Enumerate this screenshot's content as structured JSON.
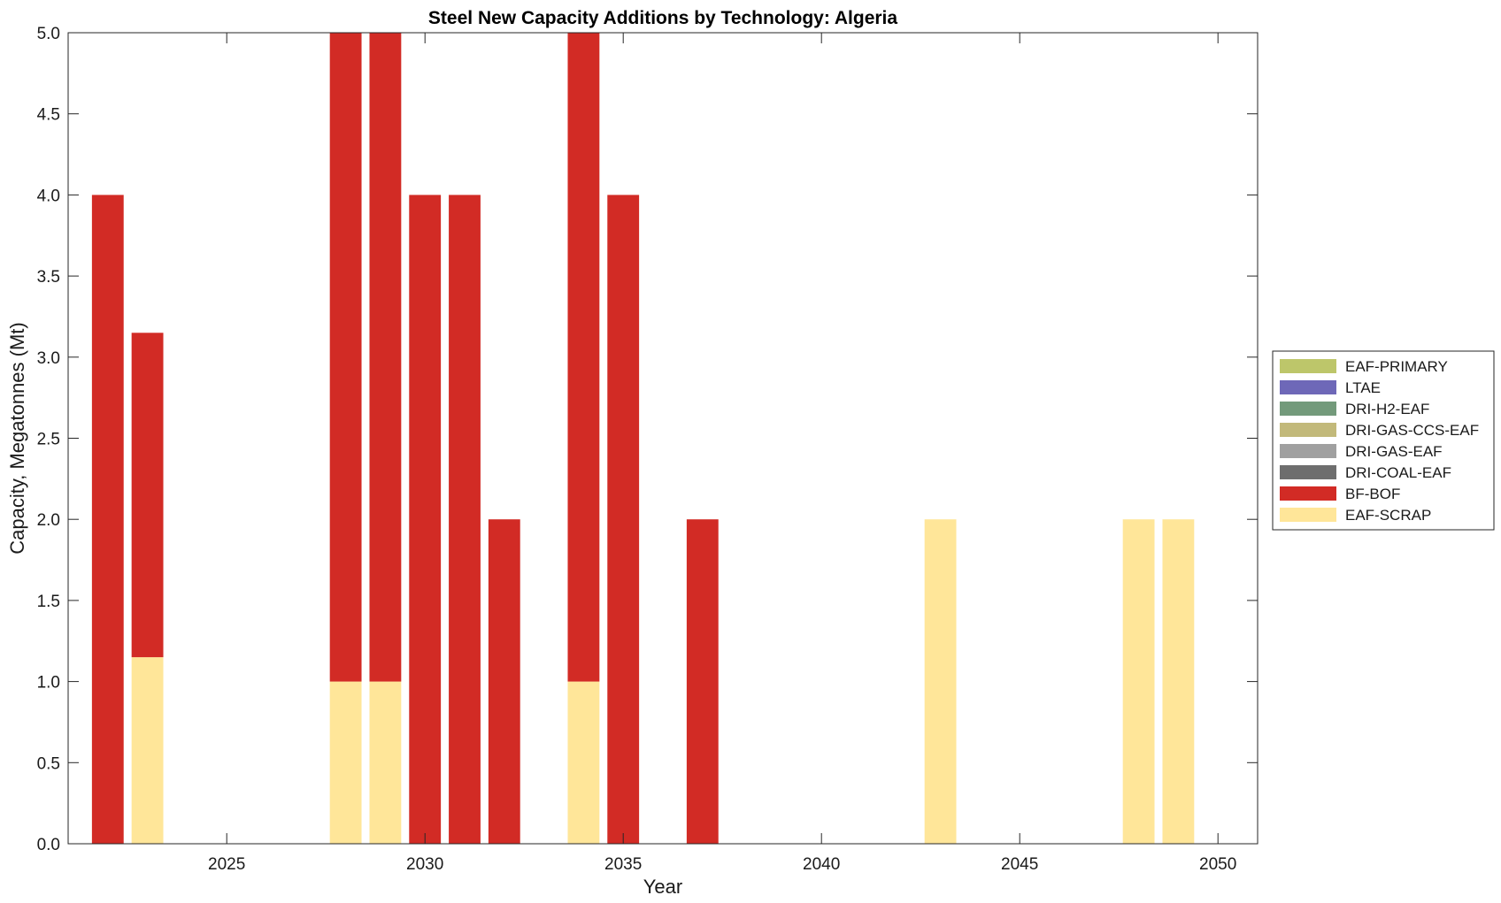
{
  "chart_data": {
    "type": "bar",
    "stacked": true,
    "title": "Steel New Capacity Additions by Technology: Algeria",
    "xlabel": "Year",
    "ylabel": "Capacity, Megatonnes (Mt)",
    "xlim": [
      2021,
      2051
    ],
    "ylim": [
      0,
      5
    ],
    "xticks": [
      2025,
      2030,
      2035,
      2040,
      2045,
      2050
    ],
    "yticks": [
      "0.0",
      "0.5",
      "1.0",
      "1.5",
      "2.0",
      "2.5",
      "3.0",
      "3.5",
      "4.0",
      "4.5",
      "5.0"
    ],
    "grid": false,
    "legend_position": "right",
    "x": [
      2022,
      2023,
      2024,
      2025,
      2026,
      2027,
      2028,
      2029,
      2030,
      2031,
      2032,
      2033,
      2034,
      2035,
      2036,
      2037,
      2038,
      2039,
      2040,
      2041,
      2042,
      2043,
      2044,
      2045,
      2046,
      2047,
      2048,
      2049,
      2050
    ],
    "series": [
      {
        "name": "EAF-SCRAP",
        "color": "#FFE699",
        "values": [
          0,
          1.15,
          0,
          0,
          0,
          0,
          1,
          1,
          0,
          0,
          0,
          0,
          1,
          0,
          0,
          0,
          0,
          0,
          0,
          0,
          0,
          2,
          0,
          0,
          0,
          0,
          2,
          2,
          0
        ]
      },
      {
        "name": "BF-BOF",
        "color": "#D22B25",
        "values": [
          4,
          2,
          0,
          0,
          0,
          0,
          4,
          4,
          4,
          4,
          2,
          0,
          4,
          4,
          0,
          2,
          0,
          0,
          0,
          0,
          0,
          0,
          0,
          0,
          0,
          0,
          0,
          0,
          0
        ]
      },
      {
        "name": "DRI-COAL-EAF",
        "color": "#6E6E6E",
        "values": [
          0,
          0,
          0,
          0,
          0,
          0,
          0,
          0,
          0,
          0,
          0,
          0,
          0,
          0,
          0,
          0,
          0,
          0,
          0,
          0,
          0,
          0,
          0,
          0,
          0,
          0,
          0,
          0,
          0
        ]
      },
      {
        "name": "DRI-GAS-EAF",
        "color": "#A0A0A0",
        "values": [
          0,
          0,
          0,
          0,
          0,
          0,
          0,
          0,
          0,
          0,
          0,
          0,
          0,
          0,
          0,
          0,
          0,
          0,
          0,
          0,
          0,
          0,
          0,
          0,
          0,
          0,
          0,
          0,
          0
        ]
      },
      {
        "name": "DRI-GAS-CCS-EAF",
        "color": "#C2B97A",
        "values": [
          0,
          0,
          0,
          0,
          0,
          0,
          0,
          0,
          0,
          0,
          0,
          0,
          0,
          0,
          0,
          0,
          0,
          0,
          0,
          0,
          0,
          0,
          0,
          0,
          0,
          0,
          0,
          0,
          0
        ]
      },
      {
        "name": "DRI-H2-EAF",
        "color": "#739A7B",
        "values": [
          0,
          0,
          0,
          0,
          0,
          0,
          0,
          0,
          0,
          0,
          0,
          0,
          0,
          0,
          0,
          0,
          0,
          0,
          0,
          0,
          0,
          0,
          0,
          0,
          0,
          0,
          0,
          0,
          0
        ]
      },
      {
        "name": "LTAE",
        "color": "#6E68B8",
        "values": [
          0,
          0,
          0,
          0,
          0,
          0,
          0,
          0,
          0,
          0,
          0,
          0,
          0,
          0,
          0,
          0,
          0,
          0,
          0,
          0,
          0,
          0,
          0,
          0,
          0,
          0,
          0,
          0,
          0
        ]
      },
      {
        "name": "EAF-PRIMARY",
        "color": "#BDC66A",
        "values": [
          0,
          0,
          0,
          0,
          0,
          0,
          0,
          0,
          0,
          0,
          0,
          0,
          0,
          0,
          0,
          0,
          0,
          0,
          0,
          0,
          0,
          0,
          0,
          0,
          0,
          0,
          0,
          0,
          0
        ]
      }
    ],
    "legend_order": [
      "EAF-PRIMARY",
      "LTAE",
      "DRI-H2-EAF",
      "DRI-GAS-CCS-EAF",
      "DRI-GAS-EAF",
      "DRI-COAL-EAF",
      "BF-BOF",
      "EAF-SCRAP"
    ]
  }
}
